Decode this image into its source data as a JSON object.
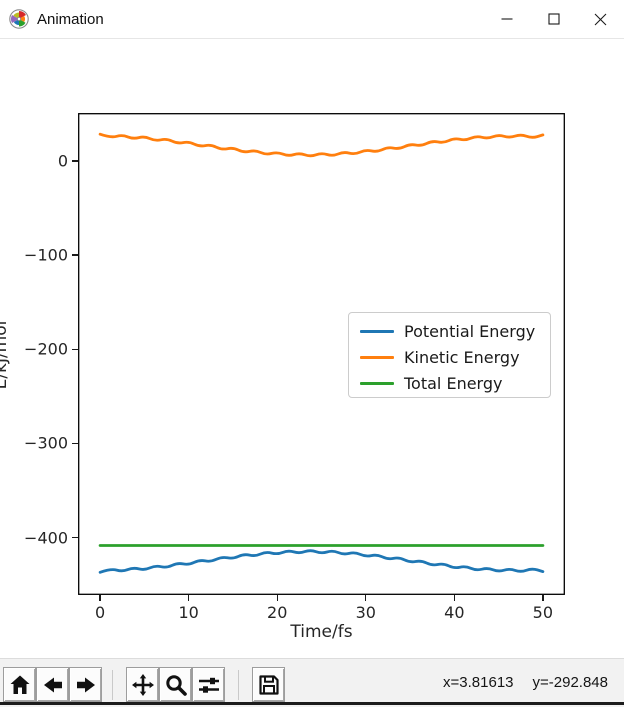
{
  "window": {
    "title": "Animation"
  },
  "toolbar": {
    "buttons": [
      "home",
      "back",
      "forward",
      "pan",
      "zoom-to-rect",
      "configure-subplots",
      "save"
    ],
    "status_x": "x=3.81613",
    "status_y": "y=-292.848"
  },
  "chart_data": {
    "type": "line",
    "title": "",
    "xlabel": "Time/fs",
    "ylabel": "E/kJ/mol",
    "xlim": [
      -2.5,
      52.5
    ],
    "ylim": [
      -461,
      51
    ],
    "xticks": [
      0,
      10,
      20,
      30,
      40,
      50
    ],
    "yticks": [
      0,
      -100,
      -200,
      -300,
      -400
    ],
    "grid": false,
    "legend_position": "center right",
    "x": [
      0,
      1.25,
      2.5,
      3.75,
      5,
      6.25,
      7.5,
      8.75,
      10,
      11.25,
      12.5,
      13.75,
      15,
      16.25,
      17.5,
      18.75,
      20,
      21.25,
      22.5,
      23.75,
      25,
      26.25,
      27.5,
      28.75,
      30,
      31.25,
      32.5,
      33.75,
      35,
      36.25,
      37.5,
      38.75,
      40,
      41.25,
      42.5,
      43.75,
      45,
      46.25,
      47.5,
      48.75,
      50
    ],
    "series": [
      {
        "name": "Potential Energy",
        "color": "#1f77b4",
        "values": [
          -436.9,
          -432.8,
          -436.4,
          -431.7,
          -434.8,
          -429.6,
          -432.3,
          -426.8,
          -429.2,
          -423.6,
          -425.9,
          -420.3,
          -422.7,
          -417.2,
          -420,
          -414.9,
          -418,
          -413.4,
          -417,
          -412.9,
          -417.1,
          -413.5,
          -418.3,
          -415.3,
          -420.4,
          -417.8,
          -423.3,
          -420.9,
          -426.6,
          -424.2,
          -429.9,
          -427.4,
          -432.8,
          -430.1,
          -435.1,
          -432,
          -436.5,
          -432.9,
          -436.9,
          -432.6,
          -436.1
        ]
      },
      {
        "name": "Kinetic Energy",
        "color": "#ff7f0e",
        "values": [
          28.5,
          24.4,
          28,
          23.3,
          26.4,
          21.2,
          23.9,
          18.4,
          20.8,
          15.2,
          17.5,
          11.9,
          14.3,
          8.8,
          11.6,
          6.5,
          9.6,
          5,
          8.6,
          4.5,
          8.7,
          5.1,
          9.9,
          6.9,
          12,
          9.4,
          14.9,
          12.5,
          18.2,
          15.8,
          21.5,
          19,
          24.4,
          21.7,
          26.7,
          23.6,
          28.1,
          24.5,
          28.5,
          24.2,
          27.7
        ]
      },
      {
        "name": "Total Energy",
        "color": "#2ca02c",
        "values": [
          -408.4,
          -408.4,
          -408.4,
          -408.4,
          -408.4,
          -408.4,
          -408.4,
          -408.4,
          -408.4,
          -408.4,
          -408.4,
          -408.4,
          -408.4,
          -408.4,
          -408.4,
          -408.4,
          -408.4,
          -408.4,
          -408.4,
          -408.4,
          -408.4,
          -408.4,
          -408.4,
          -408.4,
          -408.4,
          -408.4,
          -408.4,
          -408.4,
          -408.4,
          -408.4,
          -408.4,
          -408.4,
          -408.4,
          -408.4,
          -408.4,
          -408.4,
          -408.4,
          -408.4,
          -408.4,
          -408.4,
          -408.4
        ]
      }
    ]
  }
}
